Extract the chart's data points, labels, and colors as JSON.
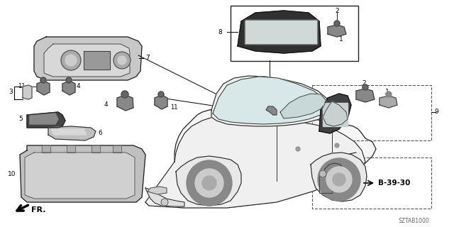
{
  "bg_color": "#ffffff",
  "diagram_code": "SZTAB1000",
  "fr_label": "FR.",
  "b_ref": "B-39-30",
  "figsize": [
    6.4,
    3.2
  ],
  "dpi": 100
}
